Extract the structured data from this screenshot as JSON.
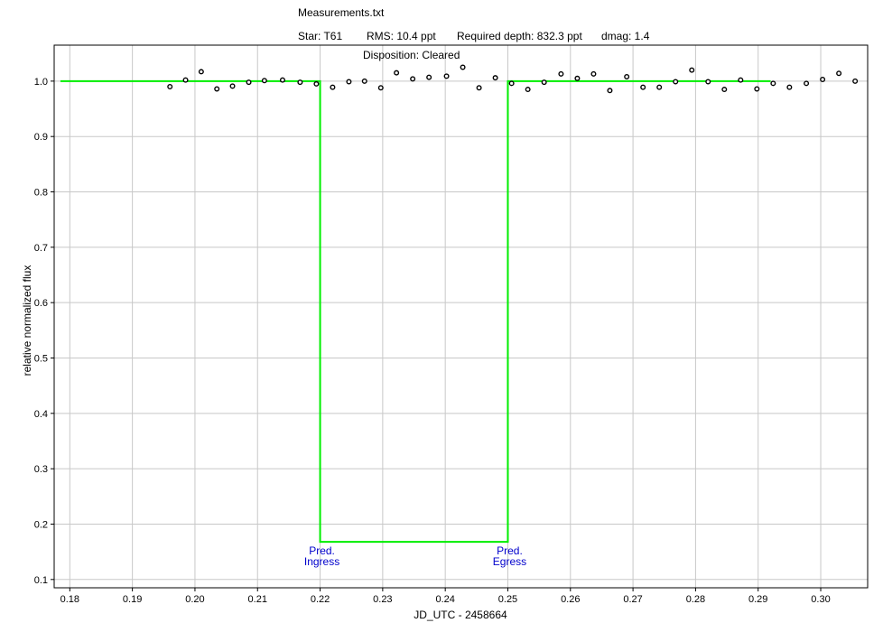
{
  "header": {
    "file": "Measurements.txt",
    "star": "Star: T61",
    "rms": "RMS: 10.4 ppt",
    "depth": "Required depth: 832.3 ppt",
    "dmag": "dmag: 1.4",
    "disposition": "Disposition: Cleared"
  },
  "chart_data": {
    "type": "scatter",
    "title": "Measurements.txt",
    "xlabel": "JD_UTC - 2458664",
    "ylabel": "relative normalized flux",
    "xlim": [
      0.1775,
      0.3075
    ],
    "ylim": [
      0.085,
      1.065
    ],
    "xticks": [
      "0.18",
      "0.19",
      "0.20",
      "0.21",
      "0.22",
      "0.23",
      "0.24",
      "0.25",
      "0.26",
      "0.27",
      "0.28",
      "0.29",
      "0.30"
    ],
    "yticks": [
      "0.1",
      "0.2",
      "0.3",
      "0.4",
      "0.5",
      "0.6",
      "0.7",
      "0.8",
      "0.9",
      "1.0"
    ],
    "grid": true,
    "series": [
      {
        "x": [
          0.196,
          0.1985,
          0.201,
          0.2035,
          0.206,
          0.2086,
          0.2111,
          0.214,
          0.2168,
          0.2194,
          0.222,
          0.2246,
          0.2271,
          0.2297,
          0.2322,
          0.2348,
          0.2374,
          0.2402,
          0.2428,
          0.2454,
          0.248,
          0.2506,
          0.2532,
          0.2558,
          0.2585,
          0.2611,
          0.2637,
          0.2663,
          0.269,
          0.2716,
          0.2742,
          0.2768,
          0.2794,
          0.282,
          0.2846,
          0.2872,
          0.2898,
          0.2924,
          0.295,
          0.2977,
          0.3003,
          0.3029,
          0.3055
        ],
        "y": [
          0.99,
          1.002,
          1.017,
          0.986,
          0.991,
          0.998,
          1.001,
          1.002,
          0.998,
          0.995,
          0.989,
          0.999,
          1.0,
          0.988,
          1.015,
          1.004,
          1.007,
          1.009,
          1.025,
          0.988,
          1.006,
          0.996,
          0.985,
          0.998,
          1.013,
          1.005,
          1.013,
          0.983,
          1.008,
          0.989,
          0.989,
          0.999,
          1.02,
          0.999,
          0.985,
          1.002,
          0.986,
          0.996,
          0.989,
          0.996,
          1.003,
          1.014,
          1.0
        ],
        "color": "#000000"
      },
      {
        "x": [
          0.1785,
          0.22,
          0.22,
          0.25,
          0.25,
          0.292
        ],
        "y": [
          1.0,
          1.0,
          0.168,
          0.168,
          1.0,
          1.0
        ],
        "color": "#00ee00"
      }
    ],
    "annotations": [
      {
        "line1": "Pred.",
        "line2": "Ingress",
        "x": 0.22,
        "color": "#0000cc"
      },
      {
        "line1": "Pred.",
        "line2": "Egress",
        "x": 0.25,
        "color": "#0000cc"
      }
    ]
  }
}
